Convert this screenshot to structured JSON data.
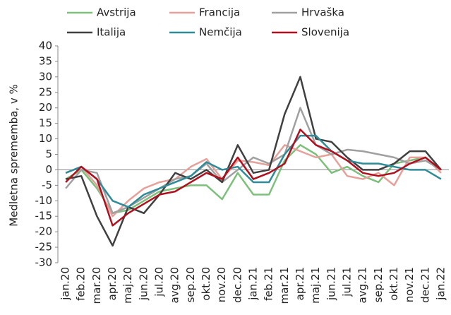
{
  "chart_data": {
    "type": "line",
    "y_label": "Medletna sprememba, v %",
    "categories": [
      "jan.20",
      "feb.20",
      "mar.20",
      "apr.20",
      "maj.20",
      "jun.20",
      "jul.20",
      "avg.20",
      "sep.20",
      "okt.20",
      "nov.20",
      "dec.20",
      "jan.21",
      "feb.21",
      "mar.21",
      "apr.21",
      "maj.21",
      "jun.21",
      "jul.21",
      "avg.21",
      "sep.21",
      "okt.21",
      "nov.21",
      "dec.21",
      "jan.22"
    ],
    "series": [
      {
        "name": "Avstrija",
        "color": "#7cc07c",
        "values": [
          -3,
          0,
          -6,
          -14,
          -13,
          -10,
          -7,
          -6,
          -5,
          -5,
          -9.5,
          -1,
          -8,
          -8,
          3,
          8,
          5,
          -1,
          1,
          -2,
          -4,
          2,
          3,
          4,
          0
        ]
      },
      {
        "name": "Francija",
        "color": "#e6a09a",
        "values": [
          -1,
          1,
          -5,
          -15,
          -10,
          -6,
          -4,
          -3,
          1,
          3.5,
          -3,
          3,
          2.5,
          1.5,
          8,
          6,
          4,
          5,
          -2,
          -3,
          -1,
          -5,
          4,
          4,
          -1
        ]
      },
      {
        "name": "Hrvaška",
        "color": "#a0a0a0",
        "values": [
          -6,
          0,
          -1,
          -14,
          -12,
          -9,
          -6,
          -3,
          -2,
          2,
          -4,
          0,
          4,
          2,
          5,
          20,
          8,
          5,
          6.5,
          6,
          5,
          4,
          2,
          3,
          0
        ]
      },
      {
        "name": "Italija",
        "color": "#404040",
        "values": [
          -3,
          -2,
          -15,
          -24.5,
          -12,
          -14,
          -8,
          -1,
          -3,
          0,
          -4,
          8,
          -1,
          0,
          18,
          30,
          10,
          9,
          4,
          0,
          0,
          2,
          6,
          6,
          0
        ]
      },
      {
        "name": "Nemčija",
        "color": "#2e8b98",
        "values": [
          -1,
          1,
          -3,
          -10,
          -12,
          -8,
          -6,
          -4,
          -2,
          2.5,
          0,
          1,
          -4,
          -4,
          5,
          11,
          11,
          6,
          3,
          2,
          2,
          1,
          0,
          0,
          -3
        ]
      },
      {
        "name": "Slovenija",
        "color": "#b0101e",
        "values": [
          -4,
          1,
          -3,
          -18,
          -14,
          -11,
          -8,
          -7,
          -4,
          -1,
          -3,
          4,
          -3,
          -1,
          2,
          13,
          8,
          6,
          3,
          -1,
          -2,
          -1,
          2,
          4,
          0
        ]
      }
    ],
    "ylim": [
      -30,
      40
    ],
    "yticks": [
      -30,
      -25,
      -20,
      -15,
      -10,
      -5,
      0,
      5,
      10,
      15,
      20,
      25,
      30,
      35,
      40
    ],
    "grid": false
  }
}
